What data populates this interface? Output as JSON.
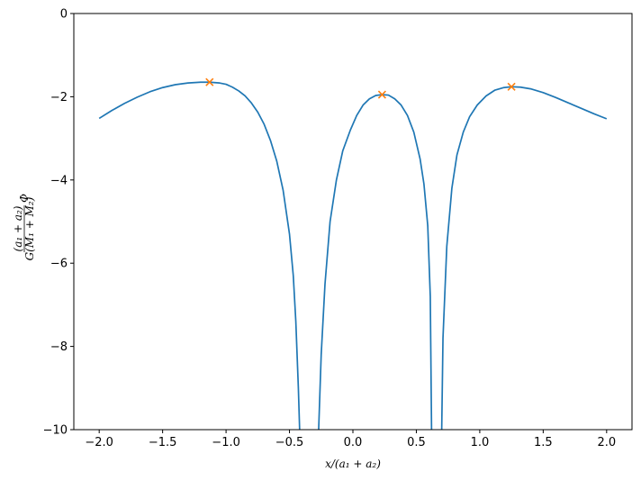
{
  "chart_data": {
    "type": "line",
    "title": "",
    "xlabel": "x/(a₁ + a₂)",
    "ylabel_parts": {
      "numerator": "(a₁ + a₂)",
      "denominator": "G(M₁ + M₂)",
      "symbol": "Φ"
    },
    "xlim": [
      -2.2,
      2.2
    ],
    "ylim": [
      -10,
      0
    ],
    "x_ticks": [
      -2.0,
      -1.5,
      -1.0,
      -0.5,
      0.0,
      0.5,
      1.0,
      1.5,
      2.0
    ],
    "x_tick_labels": [
      "−2.0",
      "−1.5",
      "−1.0",
      "−0.5",
      "0.0",
      "0.5",
      "1.0",
      "1.5",
      "2.0"
    ],
    "y_ticks": [
      0,
      -2,
      -4,
      -6,
      -8,
      -10
    ],
    "y_tick_labels": [
      "0",
      "−2",
      "−4",
      "−6",
      "−8",
      "−10"
    ],
    "grid": false,
    "series": [
      {
        "kind": "line",
        "color": "#1f77b4",
        "segments": [
          {
            "x": [
              -2.0,
              -1.9,
              -1.8,
              -1.7,
              -1.6,
              -1.5,
              -1.4,
              -1.3,
              -1.2,
              -1.13,
              -1.05,
              -1.0,
              -0.95,
              -0.9,
              -0.85,
              -0.8,
              -0.75,
              -0.7,
              -0.65,
              -0.6,
              -0.55,
              -0.5,
              -0.47,
              -0.45,
              -0.43,
              -0.42
            ],
            "y": [
              -2.52,
              -2.33,
              -2.16,
              -2.01,
              -1.88,
              -1.78,
              -1.71,
              -1.67,
              -1.65,
              -1.65,
              -1.67,
              -1.7,
              -1.77,
              -1.86,
              -1.98,
              -2.15,
              -2.37,
              -2.66,
              -3.05,
              -3.55,
              -4.25,
              -5.3,
              -6.3,
              -7.4,
              -9.0,
              -10.0
            ]
          },
          {
            "x": [
              -0.27,
              -0.25,
              -0.22,
              -0.18,
              -0.13,
              -0.08,
              -0.02,
              0.03,
              0.08,
              0.13,
              0.18,
              0.23,
              0.28,
              0.33,
              0.38,
              0.43,
              0.48,
              0.53,
              0.56,
              0.59,
              0.61,
              0.62
            ],
            "y": [
              -10.0,
              -8.2,
              -6.5,
              -5.0,
              -4.0,
              -3.3,
              -2.8,
              -2.45,
              -2.2,
              -2.05,
              -1.97,
              -1.95,
              -1.96,
              -2.05,
              -2.2,
              -2.45,
              -2.85,
              -3.5,
              -4.1,
              -5.1,
              -6.8,
              -10.0
            ]
          },
          {
            "x": [
              0.7,
              0.71,
              0.74,
              0.78,
              0.82,
              0.87,
              0.92,
              0.98,
              1.05,
              1.12,
              1.19,
              1.25,
              1.32,
              1.4,
              1.5,
              1.6,
              1.7,
              1.8,
              1.9,
              2.0
            ],
            "y": [
              -10.0,
              -7.8,
              -5.6,
              -4.2,
              -3.4,
              -2.85,
              -2.48,
              -2.2,
              -1.98,
              -1.84,
              -1.78,
              -1.76,
              -1.77,
              -1.81,
              -1.9,
              -2.02,
              -2.15,
              -2.28,
              -2.41,
              -2.53
            ]
          }
        ]
      },
      {
        "kind": "markers",
        "marker": "x",
        "color": "#ff7f0e",
        "points": [
          {
            "x": -1.13,
            "y": -1.65
          },
          {
            "x": 0.23,
            "y": -1.95
          },
          {
            "x": 1.25,
            "y": -1.76
          }
        ]
      }
    ]
  }
}
